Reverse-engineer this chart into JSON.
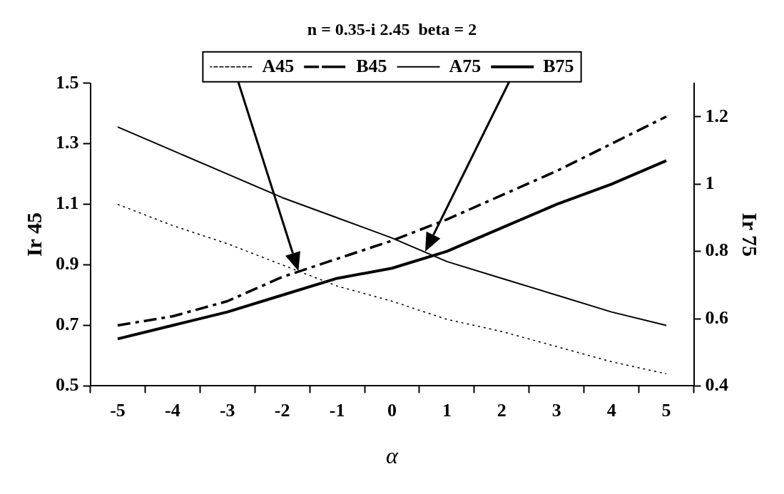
{
  "chart_data": {
    "type": "line",
    "title": "n = 0.35-i 2.45  beta = 2",
    "xlabel": "α",
    "ylabel": "Ir 45",
    "y2label": "Ir 75",
    "categories": [
      "-5",
      "-4",
      "-3",
      "-2",
      "-1",
      "0",
      "1",
      "2",
      "3",
      "4",
      "5"
    ],
    "series": [
      {
        "name": "A45",
        "color": "#000000",
        "line_style": "dotted",
        "values": [
          1.1,
          1.03,
          0.97,
          0.9,
          0.83,
          0.78,
          0.72,
          0.68,
          0.63,
          0.58,
          0.54
        ]
      },
      {
        "name": "B45",
        "color": "#000000",
        "line_style": "dashed",
        "values": [
          0.7,
          0.73,
          0.78,
          0.86,
          0.92,
          0.98,
          1.05,
          1.13,
          1.21,
          1.3,
          1.39
        ]
      },
      {
        "name": "A75",
        "color": "#000000",
        "line_style": "solid",
        "axis": "y2",
        "values": [
          1.17,
          1.1,
          1.03,
          0.96,
          0.9,
          0.84,
          0.77,
          0.72,
          0.67,
          0.62,
          0.58
        ]
      },
      {
        "name": "B75",
        "color": "#000000",
        "line_style": "solid",
        "axis": "y2",
        "values": [
          0.54,
          0.58,
          0.62,
          0.67,
          0.72,
          0.75,
          0.8,
          0.87,
          0.94,
          1.0,
          1.07
        ]
      }
    ],
    "ylim": [
      0.5,
      1.5
    ],
    "yticks": [
      0.5,
      0.7,
      0.9,
      1.1,
      1.3,
      1.5
    ],
    "y2lim": [
      0.4,
      1.3
    ],
    "y2ticks": [
      0.4,
      0.6,
      0.8,
      1,
      1.2
    ],
    "grid": false,
    "legend": "top",
    "marker": "none"
  }
}
